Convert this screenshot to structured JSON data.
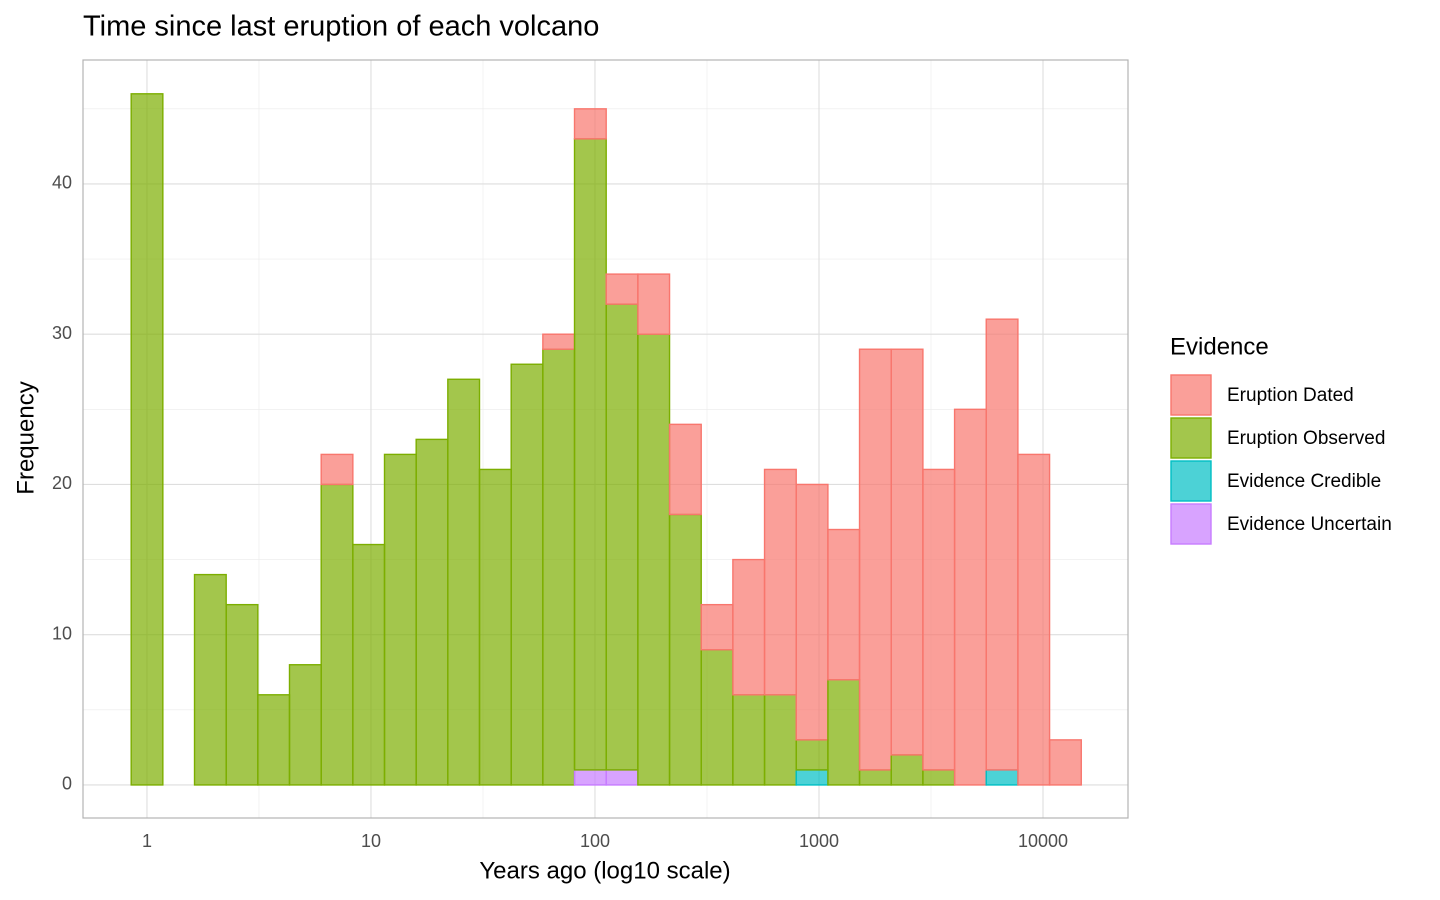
{
  "chart_data": {
    "type": "histogram",
    "title": "Time since last eruption of each volcano",
    "x_label": "Years ago (log10 scale)",
    "y_label": "Frequency",
    "x_log": true,
    "grid": true,
    "legend_position": "right",
    "legend_title": "Evidence",
    "bins": [
      0.85,
      1.177,
      1.63,
      2.257,
      3.125,
      4.327,
      5.993,
      8.299,
      11.49,
      15.91,
      22.03,
      30.51,
      42.25,
      58.51,
      81.02,
      112.2,
      155.4,
      215.2,
      298.0,
      412.6,
      571.4,
      791.2,
      1096,
      1517,
      2101,
      2910,
      4030,
      5580,
      7727,
      10700,
      14820
    ],
    "series": [
      {
        "name": "Eruption Dated",
        "color": "#F8766D",
        "values": [
          0,
          0,
          0,
          0,
          0,
          0,
          2,
          0,
          0,
          0,
          0,
          0,
          0,
          1,
          2,
          2,
          4,
          6,
          3,
          9,
          15,
          17,
          10,
          28,
          27,
          20,
          25,
          30,
          22,
          3
        ]
      },
      {
        "name": "Eruption Observed",
        "color": "#7CAE00",
        "values": [
          46,
          0,
          14,
          12,
          6,
          8,
          20,
          16,
          22,
          23,
          27,
          21,
          28,
          29,
          42,
          31,
          30,
          18,
          9,
          6,
          6,
          2,
          7,
          1,
          2,
          1,
          0,
          0,
          0,
          0
        ]
      },
      {
        "name": "Evidence Credible",
        "color": "#00BFC4",
        "values": [
          0,
          0,
          0,
          0,
          0,
          0,
          0,
          0,
          0,
          0,
          0,
          0,
          0,
          0,
          0,
          0,
          0,
          0,
          0,
          0,
          0,
          1,
          0,
          0,
          0,
          0,
          0,
          1,
          0,
          0
        ]
      },
      {
        "name": "Evidence Uncertain",
        "color": "#C77CFF",
        "values": [
          0,
          0,
          0,
          0,
          0,
          0,
          0,
          0,
          0,
          0,
          0,
          0,
          0,
          0,
          1,
          1,
          0,
          0,
          0,
          0,
          0,
          0,
          0,
          0,
          0,
          0,
          0,
          0,
          0,
          0
        ]
      }
    ],
    "xlim": [
      0.518,
      23960
    ],
    "xticks": [
      1,
      10,
      100,
      1000,
      10000
    ],
    "ylim": [
      -2.2,
      48.25
    ],
    "yticks": [
      0,
      10,
      20,
      30,
      40
    ]
  }
}
